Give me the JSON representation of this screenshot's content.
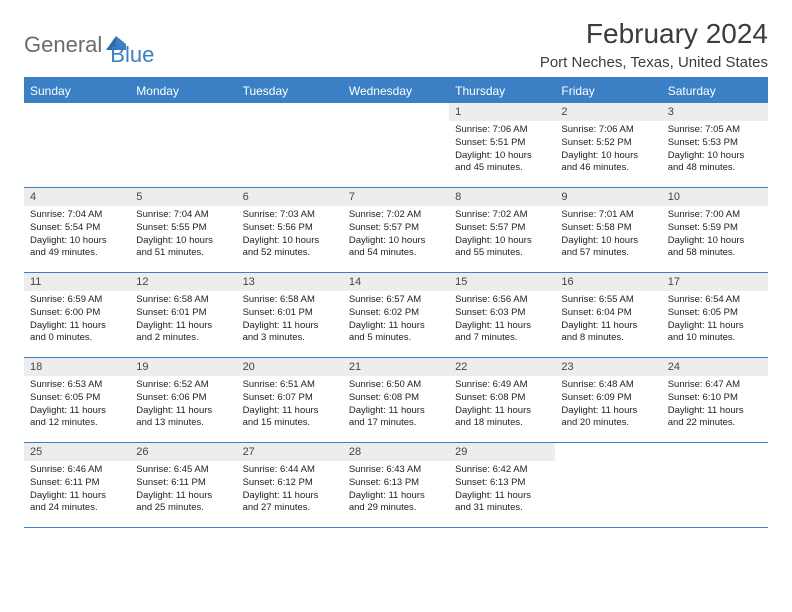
{
  "logo": {
    "part1": "General",
    "part2": "Blue"
  },
  "title": "February 2024",
  "location": "Port Neches, Texas, United States",
  "colors": {
    "accent": "#3b7fc4",
    "header_text": "#ffffff",
    "daynum_bg": "#ededed",
    "text": "#222222",
    "logo_gray": "#6a6d70"
  },
  "day_labels": [
    "Sunday",
    "Monday",
    "Tuesday",
    "Wednesday",
    "Thursday",
    "Friday",
    "Saturday"
  ],
  "weeks": [
    [
      null,
      null,
      null,
      null,
      {
        "n": "1",
        "sr": "7:06 AM",
        "ss": "5:51 PM",
        "dl": "10 hours and 45 minutes."
      },
      {
        "n": "2",
        "sr": "7:06 AM",
        "ss": "5:52 PM",
        "dl": "10 hours and 46 minutes."
      },
      {
        "n": "3",
        "sr": "7:05 AM",
        "ss": "5:53 PM",
        "dl": "10 hours and 48 minutes."
      }
    ],
    [
      {
        "n": "4",
        "sr": "7:04 AM",
        "ss": "5:54 PM",
        "dl": "10 hours and 49 minutes."
      },
      {
        "n": "5",
        "sr": "7:04 AM",
        "ss": "5:55 PM",
        "dl": "10 hours and 51 minutes."
      },
      {
        "n": "6",
        "sr": "7:03 AM",
        "ss": "5:56 PM",
        "dl": "10 hours and 52 minutes."
      },
      {
        "n": "7",
        "sr": "7:02 AM",
        "ss": "5:57 PM",
        "dl": "10 hours and 54 minutes."
      },
      {
        "n": "8",
        "sr": "7:02 AM",
        "ss": "5:57 PM",
        "dl": "10 hours and 55 minutes."
      },
      {
        "n": "9",
        "sr": "7:01 AM",
        "ss": "5:58 PM",
        "dl": "10 hours and 57 minutes."
      },
      {
        "n": "10",
        "sr": "7:00 AM",
        "ss": "5:59 PM",
        "dl": "10 hours and 58 minutes."
      }
    ],
    [
      {
        "n": "11",
        "sr": "6:59 AM",
        "ss": "6:00 PM",
        "dl": "11 hours and 0 minutes."
      },
      {
        "n": "12",
        "sr": "6:58 AM",
        "ss": "6:01 PM",
        "dl": "11 hours and 2 minutes."
      },
      {
        "n": "13",
        "sr": "6:58 AM",
        "ss": "6:01 PM",
        "dl": "11 hours and 3 minutes."
      },
      {
        "n": "14",
        "sr": "6:57 AM",
        "ss": "6:02 PM",
        "dl": "11 hours and 5 minutes."
      },
      {
        "n": "15",
        "sr": "6:56 AM",
        "ss": "6:03 PM",
        "dl": "11 hours and 7 minutes."
      },
      {
        "n": "16",
        "sr": "6:55 AM",
        "ss": "6:04 PM",
        "dl": "11 hours and 8 minutes."
      },
      {
        "n": "17",
        "sr": "6:54 AM",
        "ss": "6:05 PM",
        "dl": "11 hours and 10 minutes."
      }
    ],
    [
      {
        "n": "18",
        "sr": "6:53 AM",
        "ss": "6:05 PM",
        "dl": "11 hours and 12 minutes."
      },
      {
        "n": "19",
        "sr": "6:52 AM",
        "ss": "6:06 PM",
        "dl": "11 hours and 13 minutes."
      },
      {
        "n": "20",
        "sr": "6:51 AM",
        "ss": "6:07 PM",
        "dl": "11 hours and 15 minutes."
      },
      {
        "n": "21",
        "sr": "6:50 AM",
        "ss": "6:08 PM",
        "dl": "11 hours and 17 minutes."
      },
      {
        "n": "22",
        "sr": "6:49 AM",
        "ss": "6:08 PM",
        "dl": "11 hours and 18 minutes."
      },
      {
        "n": "23",
        "sr": "6:48 AM",
        "ss": "6:09 PM",
        "dl": "11 hours and 20 minutes."
      },
      {
        "n": "24",
        "sr": "6:47 AM",
        "ss": "6:10 PM",
        "dl": "11 hours and 22 minutes."
      }
    ],
    [
      {
        "n": "25",
        "sr": "6:46 AM",
        "ss": "6:11 PM",
        "dl": "11 hours and 24 minutes."
      },
      {
        "n": "26",
        "sr": "6:45 AM",
        "ss": "6:11 PM",
        "dl": "11 hours and 25 minutes."
      },
      {
        "n": "27",
        "sr": "6:44 AM",
        "ss": "6:12 PM",
        "dl": "11 hours and 27 minutes."
      },
      {
        "n": "28",
        "sr": "6:43 AM",
        "ss": "6:13 PM",
        "dl": "11 hours and 29 minutes."
      },
      {
        "n": "29",
        "sr": "6:42 AM",
        "ss": "6:13 PM",
        "dl": "11 hours and 31 minutes."
      },
      null,
      null
    ]
  ],
  "labels": {
    "sunrise": "Sunrise:",
    "sunset": "Sunset:",
    "daylight": "Daylight:"
  }
}
